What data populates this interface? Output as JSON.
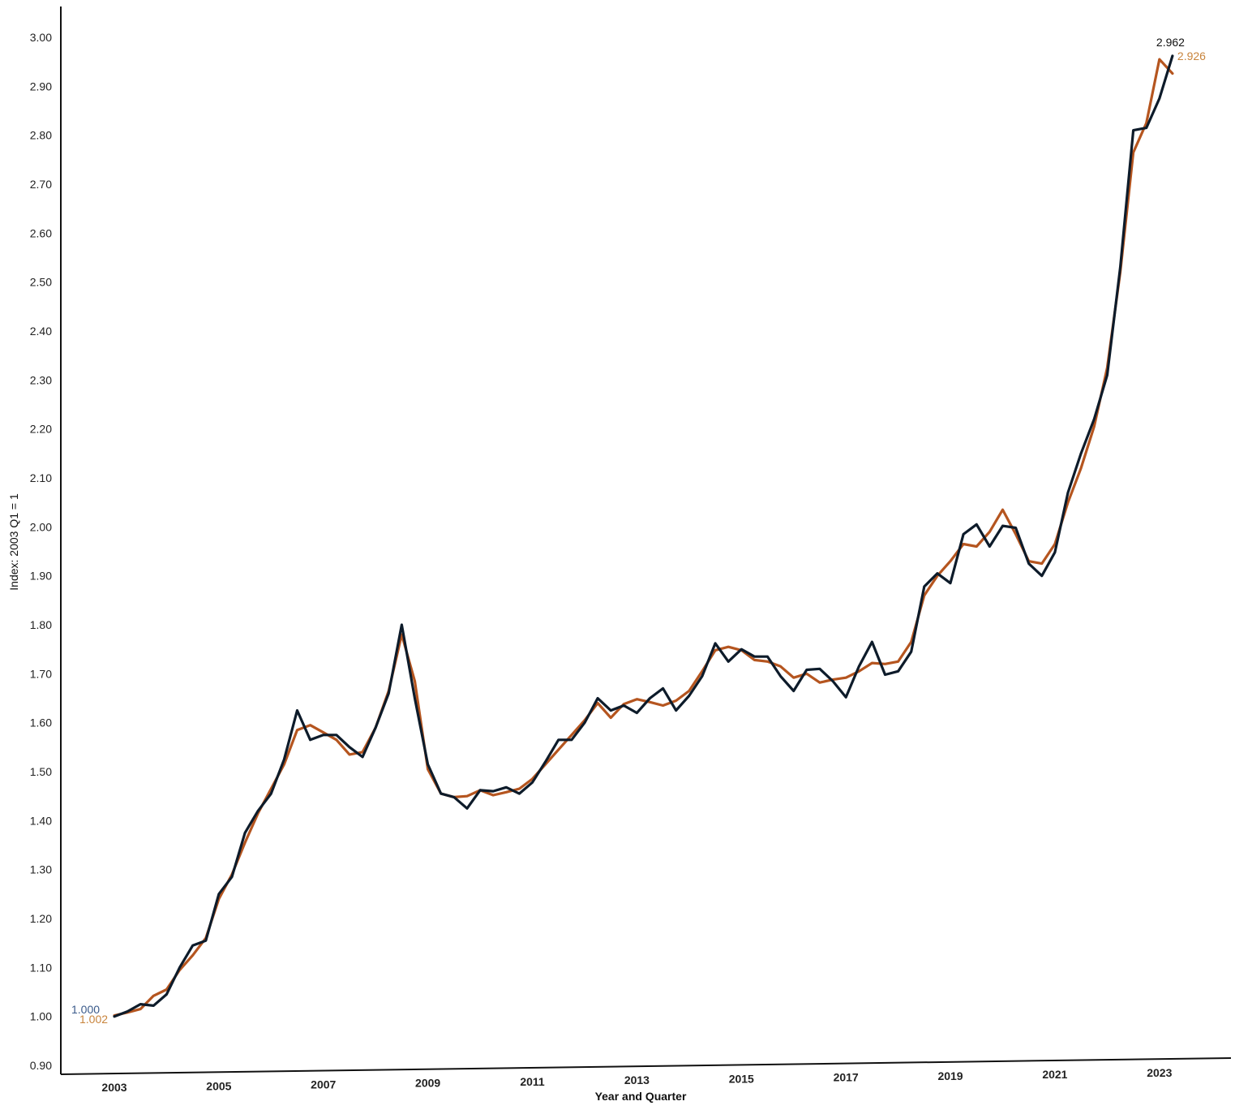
{
  "chart_data": {
    "type": "line",
    "title": "",
    "xlabel": "Year and Quarter",
    "ylabel": "Index: 2003 Q1 = 1",
    "ylim": [
      0.9,
      3.0
    ],
    "yticks": [
      "0.90",
      "1.00",
      "1.10",
      "1.20",
      "1.30",
      "1.40",
      "1.50",
      "1.60",
      "1.70",
      "1.80",
      "1.90",
      "2.00",
      "2.10",
      "2.20",
      "2.30",
      "2.40",
      "2.50",
      "2.60",
      "2.70",
      "2.80",
      "2.90",
      "3.00"
    ],
    "xticks": [
      "2003",
      "2005",
      "2007",
      "2009",
      "2011",
      "2013",
      "2015",
      "2017",
      "2019",
      "2021",
      "2023"
    ],
    "grid": false,
    "legend": "none",
    "x_start": "2003 Q1",
    "series": [
      {
        "color": "#0d1b2a",
        "start_label": "1.000",
        "start_label_color": "#3a5a8a",
        "end_label": "2.962",
        "end_label_color": "#111111",
        "values": [
          1.0,
          1.01,
          1.025,
          1.022,
          1.045,
          1.1,
          1.145,
          1.155,
          1.25,
          1.285,
          1.375,
          1.42,
          1.455,
          1.525,
          1.625,
          1.565,
          1.575,
          1.575,
          1.55,
          1.53,
          1.59,
          1.66,
          1.8,
          1.65,
          1.515,
          1.455,
          1.448,
          1.425,
          1.462,
          1.46,
          1.468,
          1.455,
          1.478,
          1.52,
          1.565,
          1.565,
          1.6,
          1.65,
          1.625,
          1.635,
          1.62,
          1.65,
          1.67,
          1.625,
          1.655,
          1.695,
          1.762,
          1.725,
          1.75,
          1.735,
          1.735,
          1.695,
          1.665,
          1.708,
          1.71,
          1.685,
          1.652,
          1.715,
          1.765,
          1.698,
          1.705,
          1.745,
          1.878,
          1.905,
          1.885,
          1.985,
          2.005,
          1.96,
          2.002,
          1.998,
          1.925,
          1.9,
          1.948,
          2.07,
          2.15,
          2.22,
          2.31,
          2.53,
          2.81,
          2.815,
          2.875,
          2.962
        ]
      },
      {
        "color": "#b5551f",
        "start_label": "1.002",
        "start_label_color": "#c8843c",
        "end_label": "2.926",
        "end_label_color": "#c8843c",
        "values": [
          1.002,
          1.008,
          1.015,
          1.042,
          1.055,
          1.095,
          1.125,
          1.16,
          1.24,
          1.29,
          1.355,
          1.415,
          1.465,
          1.515,
          1.585,
          1.595,
          1.58,
          1.565,
          1.535,
          1.54,
          1.59,
          1.665,
          1.78,
          1.685,
          1.505,
          1.455,
          1.448,
          1.45,
          1.462,
          1.452,
          1.458,
          1.465,
          1.485,
          1.515,
          1.545,
          1.575,
          1.605,
          1.64,
          1.61,
          1.638,
          1.648,
          1.642,
          1.635,
          1.645,
          1.665,
          1.705,
          1.748,
          1.755,
          1.748,
          1.728,
          1.725,
          1.715,
          1.692,
          1.7,
          1.682,
          1.688,
          1.692,
          1.705,
          1.722,
          1.72,
          1.725,
          1.765,
          1.86,
          1.9,
          1.93,
          1.965,
          1.96,
          1.99,
          2.035,
          1.985,
          1.93,
          1.925,
          1.965,
          2.05,
          2.12,
          2.205,
          2.325,
          2.52,
          2.765,
          2.825,
          2.955,
          2.926
        ]
      }
    ]
  }
}
